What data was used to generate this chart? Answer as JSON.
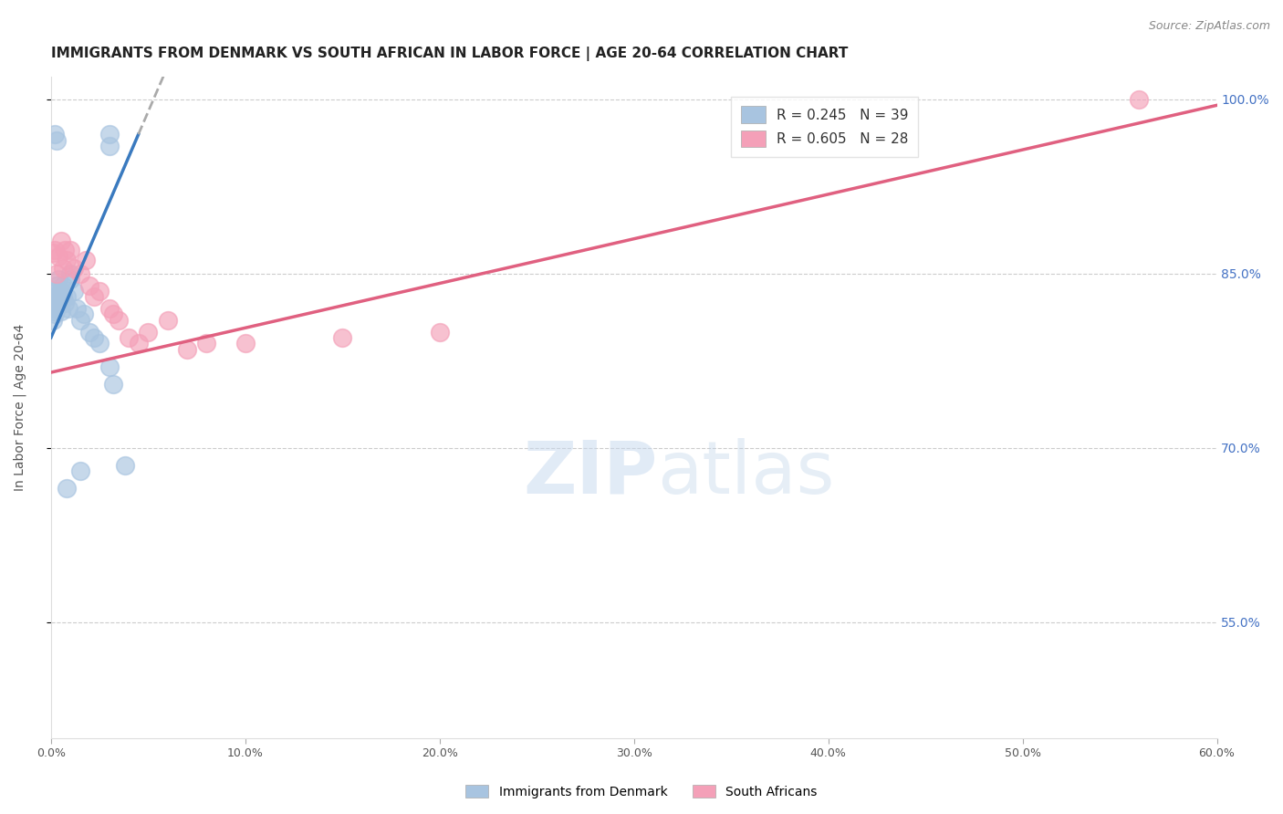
{
  "title": "IMMIGRANTS FROM DENMARK VS SOUTH AFRICAN IN LABOR FORCE | AGE 20-64 CORRELATION CHART",
  "source": "Source: ZipAtlas.com",
  "ylabel": "In Labor Force | Age 20-64",
  "xlabel": "",
  "xlim": [
    0.0,
    0.6
  ],
  "ylim": [
    0.45,
    1.02
  ],
  "yticks": [
    0.55,
    0.7,
    0.85,
    1.0
  ],
  "ytick_labels": [
    "55.0%",
    "70.0%",
    "85.0%",
    "100.0%"
  ],
  "xticks": [
    0.0,
    0.1,
    0.2,
    0.3,
    0.4,
    0.5,
    0.6
  ],
  "xtick_labels": [
    "0.0%",
    "10.0%",
    "20.0%",
    "30.0%",
    "40.0%",
    "50.0%",
    "60.0%"
  ],
  "denmark_R": 0.245,
  "denmark_N": 39,
  "sa_R": 0.605,
  "sa_N": 28,
  "denmark_color": "#a8c4e0",
  "sa_color": "#f4a0b8",
  "denmark_line_color": "#3a7abf",
  "sa_line_color": "#e06080",
  "watermark_zip": "ZIP",
  "watermark_atlas": "atlas",
  "title_fontsize": 11,
  "axis_label_fontsize": 10,
  "tick_fontsize": 9,
  "legend_fontsize": 11,
  "source_fontsize": 9,
  "denmark_scatter_x": [
    0.001,
    0.001,
    0.001,
    0.001,
    0.001,
    0.002,
    0.002,
    0.002,
    0.002,
    0.003,
    0.003,
    0.003,
    0.004,
    0.004,
    0.005,
    0.005,
    0.006,
    0.006,
    0.007,
    0.008,
    0.009,
    0.01,
    0.01,
    0.012,
    0.013,
    0.015,
    0.017,
    0.02,
    0.022,
    0.025,
    0.03,
    0.032,
    0.038,
    0.002,
    0.003,
    0.03,
    0.03,
    0.015,
    0.008
  ],
  "denmark_scatter_y": [
    0.82,
    0.825,
    0.83,
    0.818,
    0.81,
    0.822,
    0.815,
    0.828,
    0.835,
    0.84,
    0.82,
    0.83,
    0.845,
    0.825,
    0.835,
    0.818,
    0.83,
    0.84,
    0.825,
    0.83,
    0.82,
    0.845,
    0.85,
    0.835,
    0.82,
    0.81,
    0.815,
    0.8,
    0.795,
    0.79,
    0.77,
    0.755,
    0.685,
    0.97,
    0.965,
    0.97,
    0.96,
    0.68,
    0.665
  ],
  "sa_scatter_x": [
    0.001,
    0.002,
    0.003,
    0.004,
    0.005,
    0.006,
    0.007,
    0.008,
    0.01,
    0.012,
    0.015,
    0.018,
    0.02,
    0.022,
    0.025,
    0.03,
    0.032,
    0.035,
    0.04,
    0.045,
    0.05,
    0.06,
    0.07,
    0.08,
    0.1,
    0.15,
    0.2,
    0.56
  ],
  "sa_scatter_y": [
    0.868,
    0.87,
    0.85,
    0.865,
    0.878,
    0.855,
    0.87,
    0.862,
    0.87,
    0.855,
    0.85,
    0.862,
    0.84,
    0.83,
    0.835,
    0.82,
    0.815,
    0.81,
    0.795,
    0.79,
    0.8,
    0.81,
    0.785,
    0.79,
    0.79,
    0.795,
    0.8,
    1.0
  ],
  "dk_line_x0": 0.0,
  "dk_line_y0": 0.795,
  "dk_line_x1": 0.045,
  "dk_line_y1": 0.97,
  "sa_line_x0": 0.0,
  "sa_line_y0": 0.765,
  "sa_line_x1": 0.6,
  "sa_line_y1": 0.995
}
